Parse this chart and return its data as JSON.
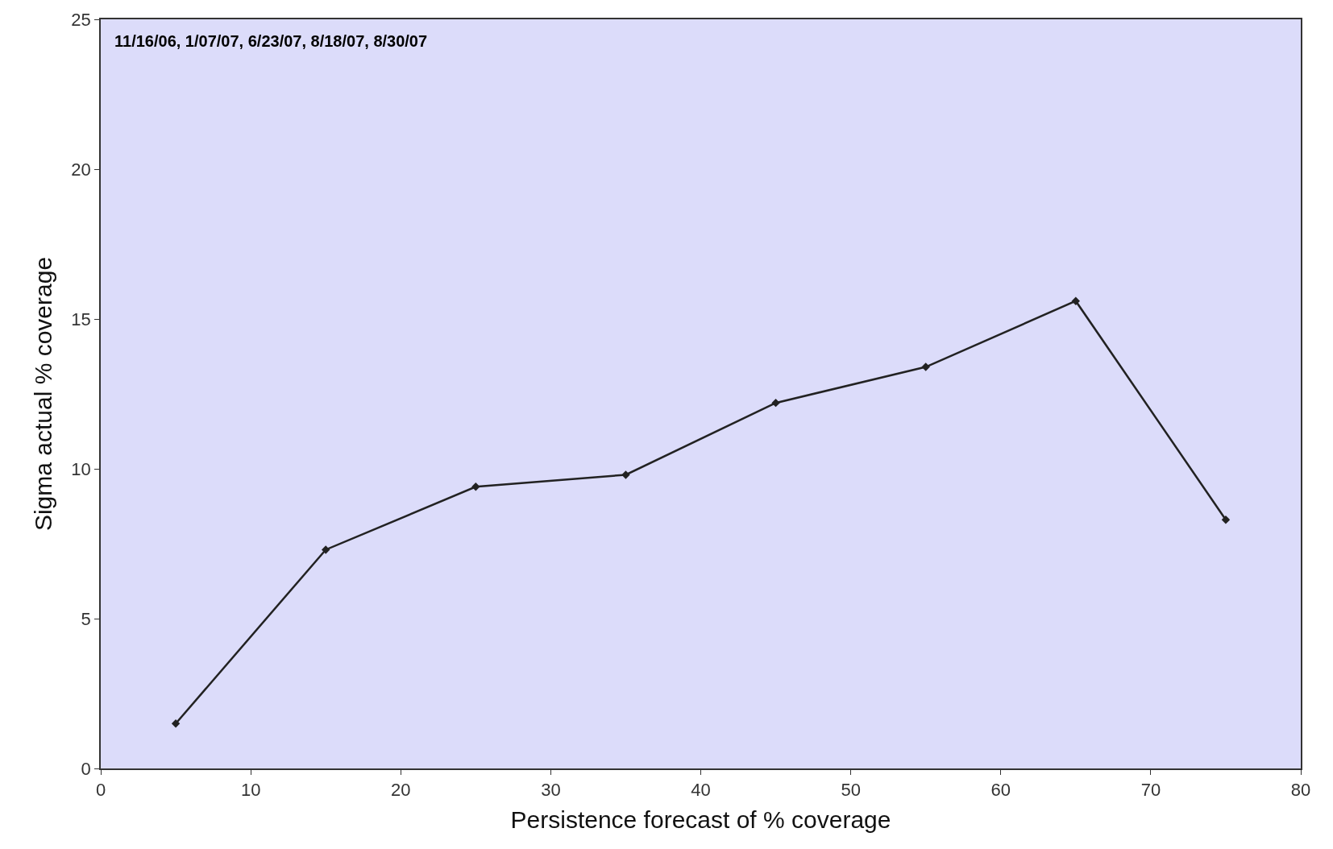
{
  "chart_data": {
    "type": "line",
    "xlabel": "Persistence forecast of % coverage",
    "ylabel": "Sigma actual % coverage",
    "annotations": [
      "11/16/06, 1/07/07, 6/23/07, 8/18/07, 8/30/07"
    ],
    "x": [
      5,
      15,
      25,
      35,
      45,
      55,
      65,
      75
    ],
    "series": [
      {
        "color": "#222222",
        "values": [
          1.5,
          7.3,
          9.4,
          9.8,
          12.2,
          13.4,
          15.6,
          8.3
        ]
      }
    ],
    "xlim": [
      0,
      80
    ],
    "xticks": [
      0,
      10,
      20,
      30,
      40,
      50,
      60,
      70,
      80
    ],
    "ylim": [
      0,
      25
    ],
    "yticks": [
      0,
      5,
      10,
      15,
      20,
      25
    ],
    "grid": false,
    "legend": false,
    "marker": "diamond",
    "line_style": "solid"
  }
}
